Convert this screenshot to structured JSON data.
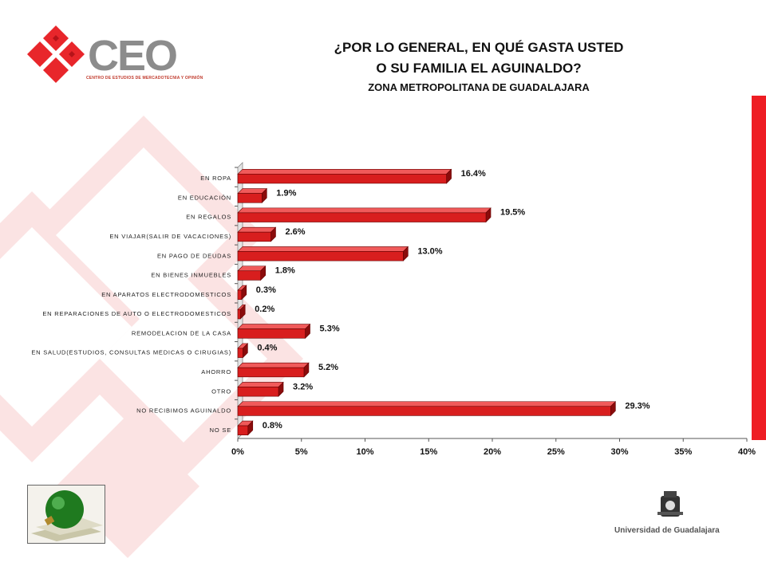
{
  "header": {
    "logo_text": "CEO",
    "logo_subtitle": "CENTRO DE ESTUDIOS DE MERCADOTECNIA Y OPINIÓN",
    "title_line1": "¿POR LO GENERAL, EN QUÉ GASTA USTED",
    "title_line2": "O SU FAMILIA EL AGUINALDO?",
    "subtitle": "ZONA METROPOLITANA DE GUADALAJARA"
  },
  "footer": {
    "university_label": "Universidad de Guadalajara"
  },
  "colors": {
    "bar": "#d81e1e",
    "bar_dark": "#8a0c0c",
    "accent": "#ee1d23"
  },
  "chart_data": {
    "type": "bar",
    "orientation": "horizontal",
    "categories": [
      "EN ROPA",
      "EN EDUCACIÓN",
      "EN REGALOS",
      "EN VIAJAR(SALIR DE VACACIONES)",
      "EN PAGO DE DEUDAS",
      "EN BIENES INMUEBLES",
      "EN APARATOS ELECTRODOMESTICOS",
      "EN REPARACIONES DE AUTO O ELECTRODOMESTICOS",
      "REMODELACION DE LA CASA",
      "EN SALUD(ESTUDIOS, CONSULTAS MEDICAS O CIRUGIAS)",
      "AHORRO",
      "OTRO",
      "NO RECIBIMOS AGUINALDO",
      "NO SE"
    ],
    "values": [
      16.4,
      1.9,
      19.5,
      2.6,
      13.0,
      1.8,
      0.3,
      0.2,
      5.3,
      0.4,
      5.2,
      3.2,
      29.3,
      0.8
    ],
    "value_labels": [
      "16.4%",
      "1.9%",
      "19.5%",
      "2.6%",
      "13.0%",
      "1.8%",
      "0.3%",
      "0.2%",
      "5.3%",
      "0.4%",
      "5.2%",
      "3.2%",
      "29.3%",
      "0.8%"
    ],
    "xlim": [
      0,
      40
    ],
    "xticks": [
      "0%",
      "5%",
      "10%",
      "15%",
      "20%",
      "25%",
      "30%",
      "35%",
      "40%"
    ]
  }
}
